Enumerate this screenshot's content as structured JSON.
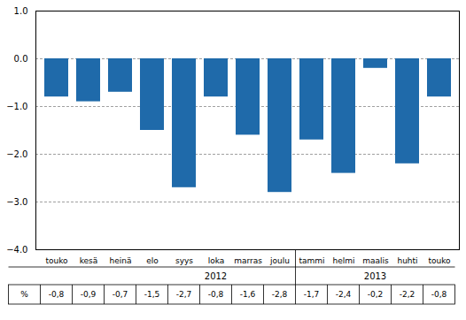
{
  "chart_data": {
    "type": "bar",
    "categories": [
      "touko",
      "kesä",
      "heinä",
      "elo",
      "syys",
      "loka",
      "marras",
      "joulu",
      "tammi",
      "helmi",
      "maalis",
      "huhti",
      "touko"
    ],
    "values": [
      -0.8,
      -0.9,
      -0.7,
      -1.5,
      -2.7,
      -0.8,
      -1.6,
      -2.8,
      -1.7,
      -2.4,
      -0.2,
      -2.2,
      -0.8
    ],
    "value_labels": [
      "-0,8",
      "-0,9",
      "-0,7",
      "-1,5",
      "-2,7",
      "-0,8",
      "-1,6",
      "-2,8",
      "-1,7",
      "-2,4",
      "-0,2",
      "-2,2",
      "-0,8"
    ],
    "data_labels": true,
    "table_label": "%",
    "color": "#1f6aaa",
    "ylim": [
      -4,
      1
    ],
    "yticks": [
      -4,
      -3,
      -2,
      -1,
      0,
      1
    ],
    "grid": true,
    "annotations": [
      {
        "text": "2012",
        "from": 3,
        "to": 7
      },
      {
        "text": "2013",
        "from": 8,
        "to": 12
      }
    ]
  }
}
